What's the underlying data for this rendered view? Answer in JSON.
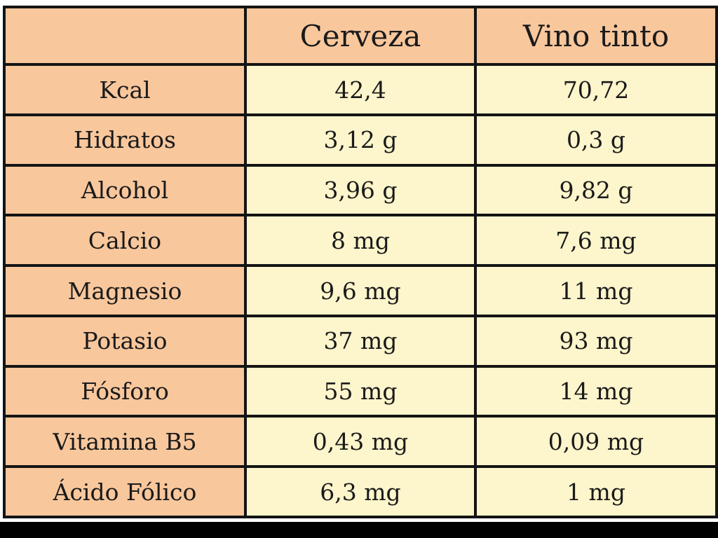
{
  "table": {
    "header": [
      "Cerveza",
      "Vino tinto"
    ],
    "rows": [
      [
        "Kcal",
        "42,4",
        "70,72"
      ],
      [
        "Hidratos",
        "3,12 g",
        "0,3 g"
      ],
      [
        "Alcohol",
        "3,96 g",
        "9,82 g"
      ],
      [
        "Calcio",
        "8 mg",
        "7,6 mg"
      ],
      [
        "Magnesio",
        "9,6 mg",
        "11 mg"
      ],
      [
        "Potasio",
        "37 mg",
        "93 mg"
      ],
      [
        "Fósforo",
        "55 mg",
        "14 mg"
      ],
      [
        "Vitamina B5",
        "0,43 mg",
        "0,09 mg"
      ],
      [
        "Ácido Fólico",
        "6,3 mg",
        "1 mg"
      ]
    ]
  }
}
